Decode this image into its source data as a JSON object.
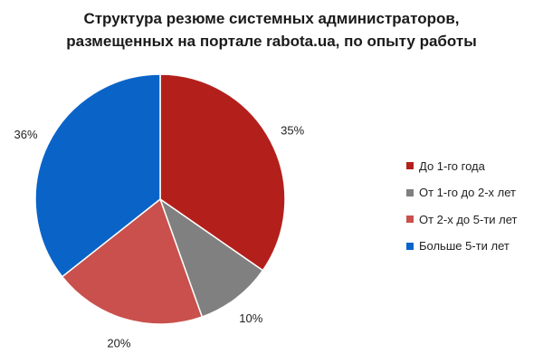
{
  "chart_data": {
    "type": "pie",
    "title_lines": [
      "Структура резюме системных администраторов,",
      "размещенных на портале rabota.ua, по опыту работы"
    ],
    "categories": [
      "До 1-го года",
      "От 1-го до 2-х лет",
      "От 2-х до 5-ти лет",
      "Больше 5-ти лет"
    ],
    "values": [
      35,
      10,
      20,
      36
    ],
    "labels": [
      "35%",
      "10%",
      "20%",
      "36%"
    ],
    "colors": [
      "#b3201c",
      "#808080",
      "#c9504c",
      "#0a64c8"
    ],
    "legend_position": "right"
  }
}
